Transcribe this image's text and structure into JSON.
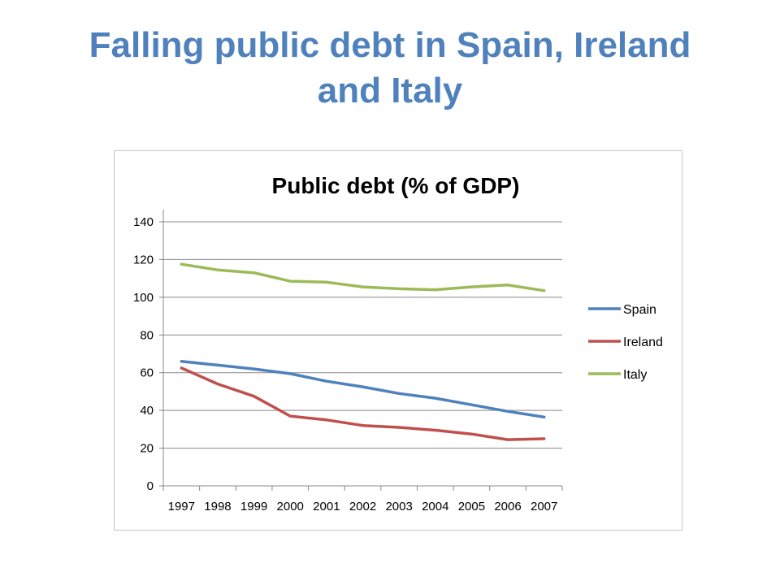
{
  "slide": {
    "title_line1": "Falling public debt in Spain, Ireland",
    "title_line2": "and Italy",
    "title_color": "#4f81bd"
  },
  "chart_data": {
    "type": "line",
    "title": "Public debt (% of GDP)",
    "x": [
      "1997",
      "1998",
      "1999",
      "2000",
      "2001",
      "2002",
      "2003",
      "2004",
      "2005",
      "2006",
      "2007"
    ],
    "ylim": [
      0,
      140
    ],
    "yticks": [
      0,
      20,
      40,
      60,
      80,
      100,
      120,
      140
    ],
    "grid": true,
    "legend_position": "right",
    "series": [
      {
        "name": "Spain",
        "color": "#4f81bd",
        "values": [
          66,
          64,
          62,
          59.5,
          55.5,
          52.5,
          49,
          46.5,
          43,
          39.5,
          36.5
        ]
      },
      {
        "name": "Ireland",
        "color": "#c0504d",
        "values": [
          62.5,
          54,
          47.5,
          37,
          35,
          32,
          31,
          29.5,
          27.5,
          24.5,
          25
        ]
      },
      {
        "name": "Italy",
        "color": "#9bbb59",
        "values": [
          117.5,
          114.5,
          113,
          108.5,
          108,
          105.5,
          104.5,
          104,
          105.5,
          106.5,
          103.5
        ]
      }
    ]
  }
}
